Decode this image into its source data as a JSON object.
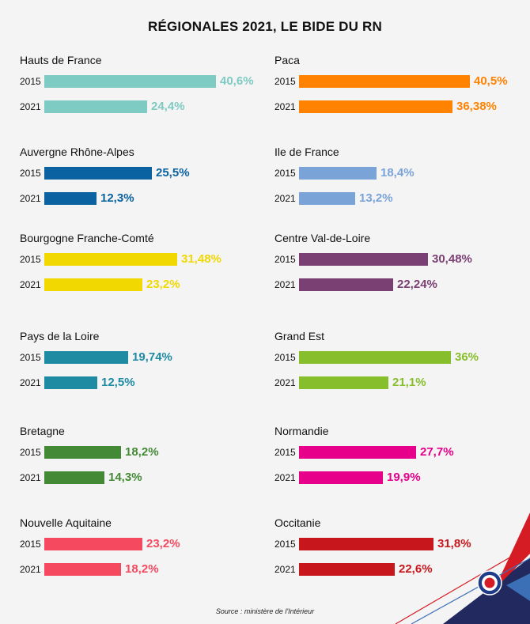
{
  "title": "RÉGIONALES 2021, LE BIDE DU RN",
  "source": "Source : ministère de l'Intérieur",
  "chart_data": {
    "type": "bar",
    "orientation": "horizontal",
    "title": "RÉGIONALES 2021, LE BIDE DU RN",
    "categories": [
      "2015",
      "2021"
    ],
    "xlim": [
      0,
      40.6
    ],
    "grid": false,
    "regions": [
      {
        "name": "Hauts de France",
        "color": "#7ecbc3",
        "values": [
          40.6,
          24.4
        ],
        "labels": [
          "40,6%",
          "24,4%"
        ]
      },
      {
        "name": "Paca",
        "color": "#ff8200",
        "values": [
          40.5,
          36.38
        ],
        "labels": [
          "40,5%",
          "36,38%"
        ]
      },
      {
        "name": "Auvergne Rhône-Alpes",
        "color": "#0a62a0",
        "values": [
          25.5,
          12.3
        ],
        "labels": [
          "25,5%",
          "12,3%"
        ]
      },
      {
        "name": "Ile de France",
        "color": "#7aa3d8",
        "values": [
          18.4,
          13.2
        ],
        "labels": [
          "18,4%",
          "13,2%"
        ]
      },
      {
        "name": "Bourgogne Franche-Comté",
        "color": "#f0d800",
        "values": [
          31.48,
          23.2
        ],
        "labels": [
          "31,48%",
          "23,2%"
        ]
      },
      {
        "name": "Centre Val-de-Loire",
        "color": "#7a3f73",
        "values": [
          30.48,
          22.24
        ],
        "labels": [
          "30,48%",
          "22,24%"
        ]
      },
      {
        "name": "Pays de la Loire",
        "color": "#1e8ba3",
        "values": [
          19.74,
          12.5
        ],
        "labels": [
          "19,74%",
          "12,5%"
        ]
      },
      {
        "name": "Grand Est",
        "color": "#86be2c",
        "values": [
          36,
          21.1
        ],
        "labels": [
          "36%",
          "21,1%"
        ]
      },
      {
        "name": "Bretagne",
        "color": "#448a36",
        "values": [
          18.2,
          14.3
        ],
        "labels": [
          "18,2%",
          "14,3%"
        ]
      },
      {
        "name": "Normandie",
        "color": "#e6008a",
        "values": [
          27.7,
          19.9
        ],
        "labels": [
          "27,7%",
          "19,9%"
        ]
      },
      {
        "name": "Nouvelle Aquitaine",
        "color": "#f5495f",
        "values": [
          23.2,
          18.2
        ],
        "labels": [
          "23,2%",
          "18,2%"
        ]
      },
      {
        "name": "Occitanie",
        "color": "#c8161d",
        "values": [
          31.8,
          22.6
        ],
        "labels": [
          "31,8%",
          "22,6%"
        ]
      }
    ]
  }
}
